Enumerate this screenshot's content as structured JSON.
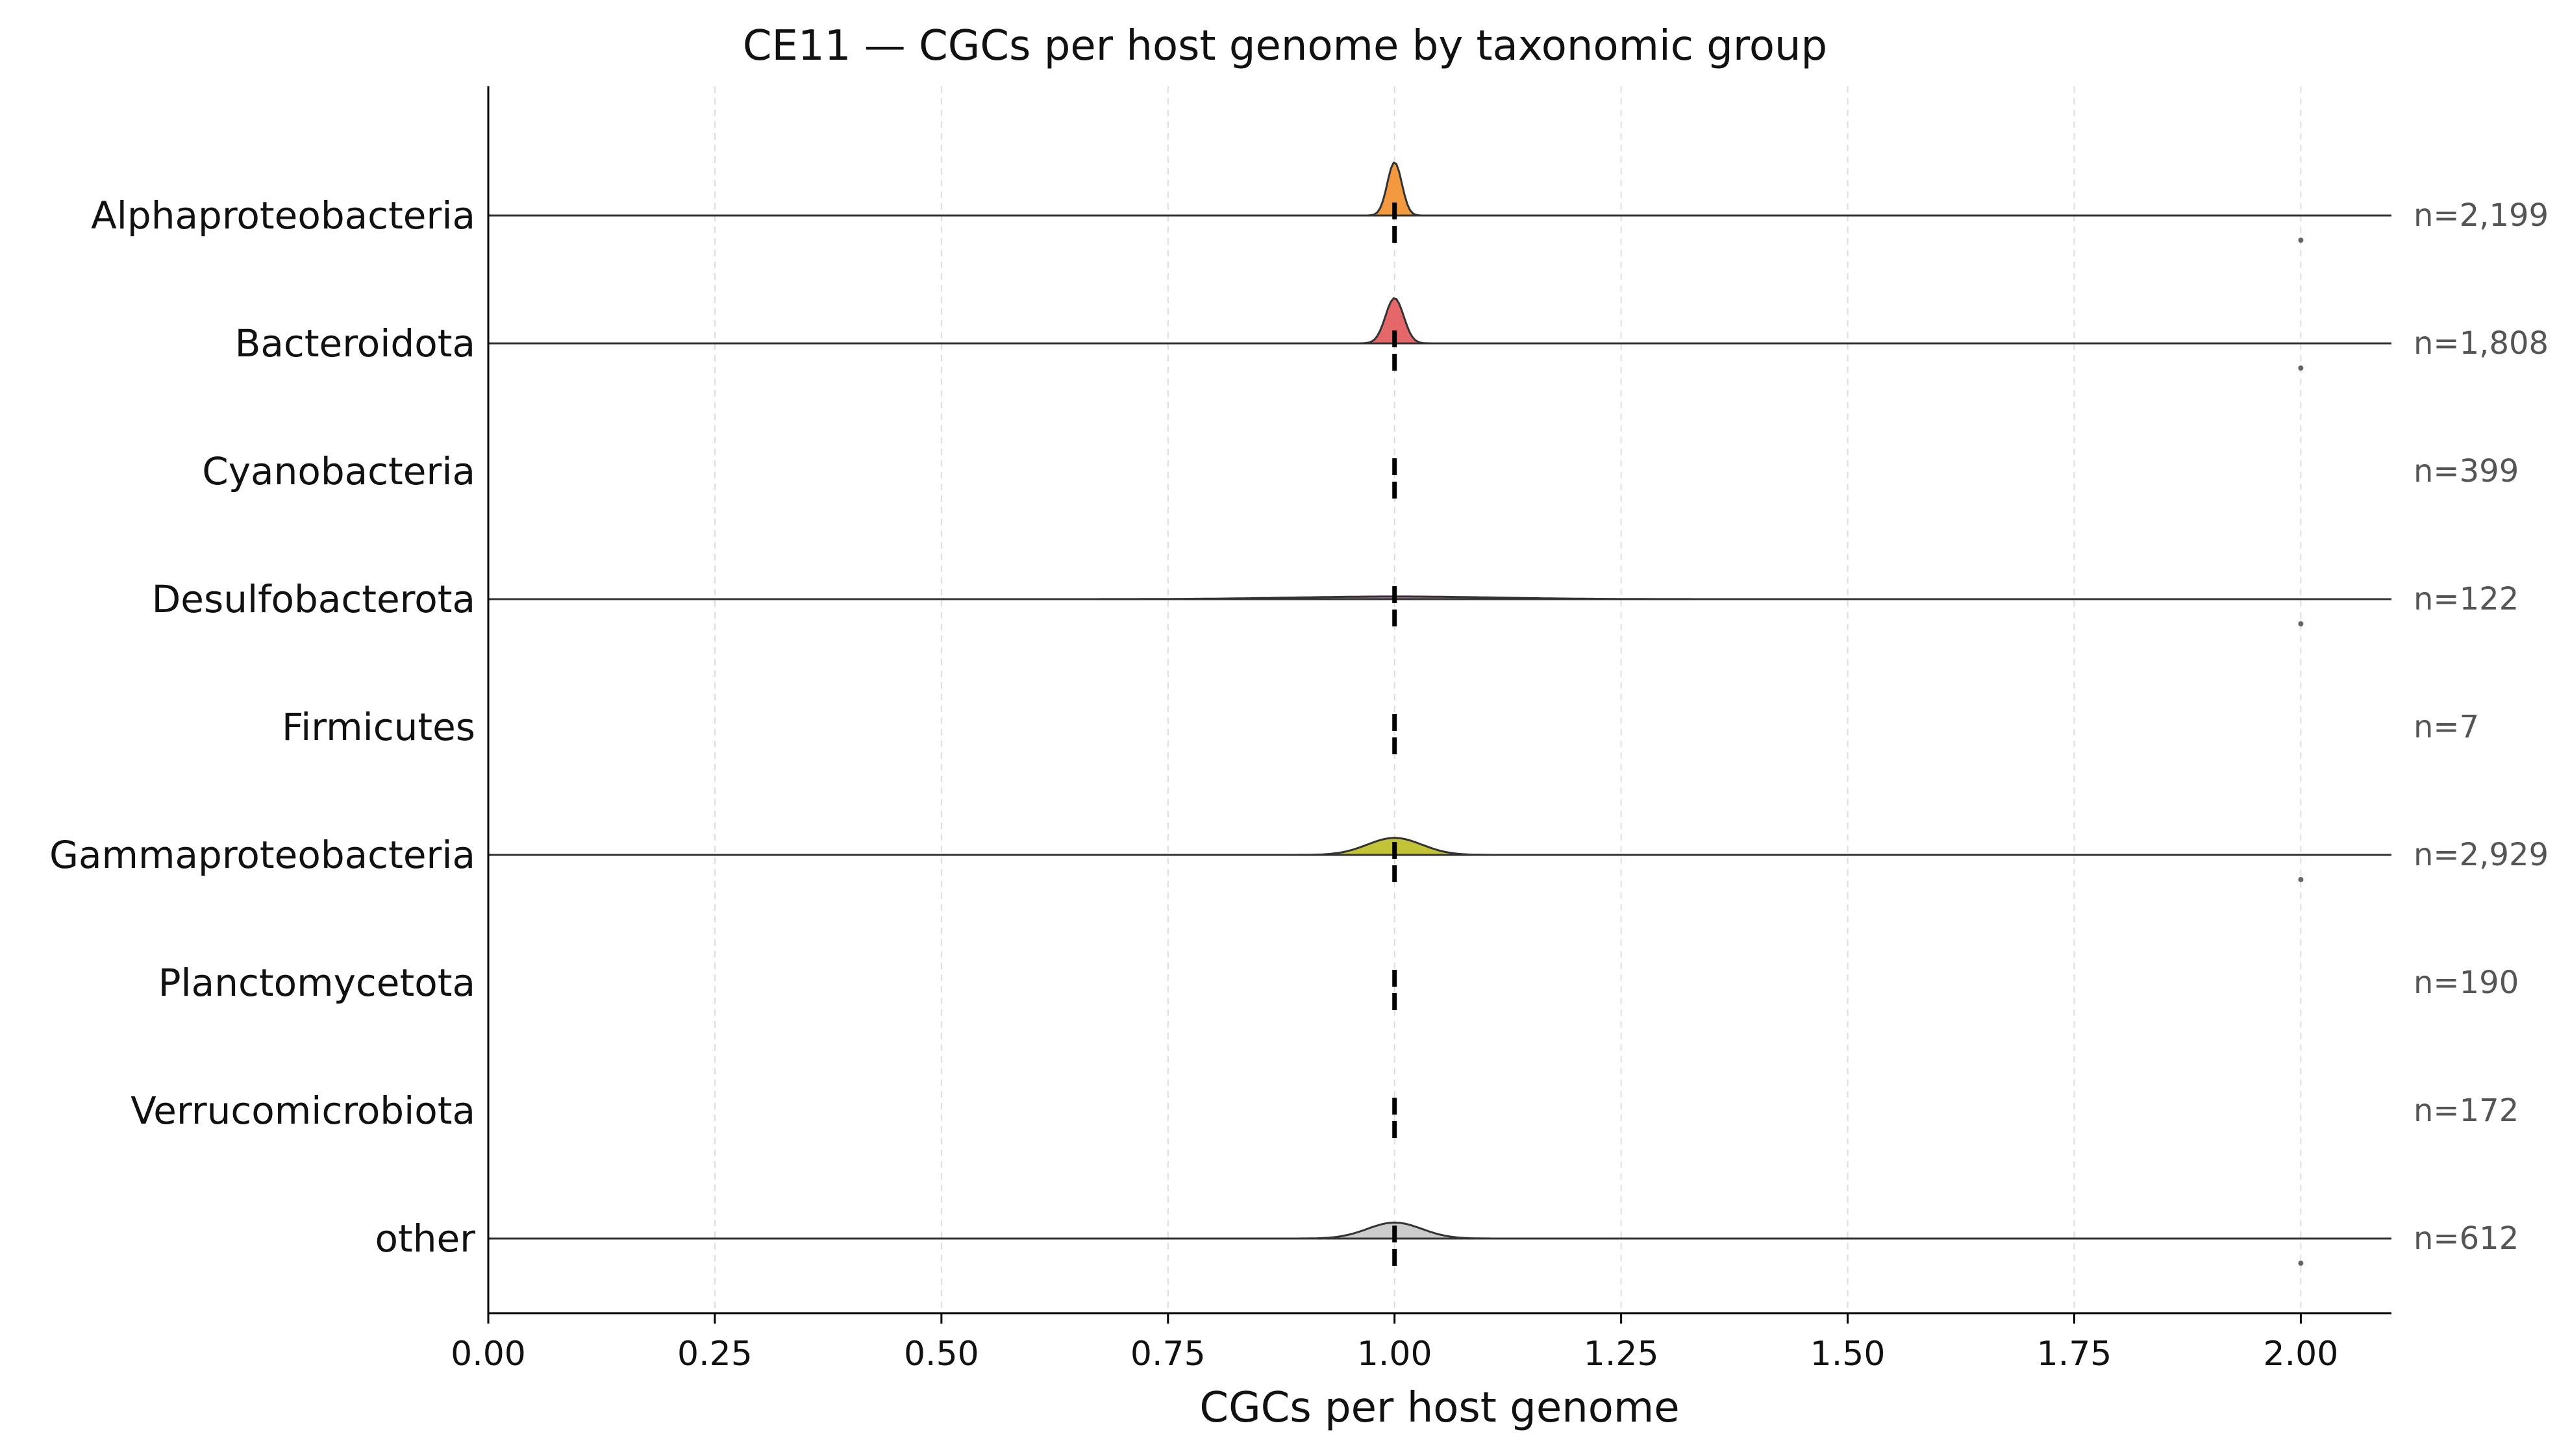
{
  "chart_data": {
    "type": "ridgeline",
    "title": "CE11 — CGCs per host genome by taxonomic group",
    "xlabel": "CGCs per host genome",
    "ylabel": "",
    "xlim": [
      0.0,
      2.1
    ],
    "x_ticks": [
      "0.00",
      "0.25",
      "0.50",
      "0.75",
      "1.00",
      "1.25",
      "1.50",
      "1.75",
      "2.00"
    ],
    "x_tick_values": [
      0.0,
      0.25,
      0.5,
      0.75,
      1.0,
      1.25,
      1.5,
      1.75,
      2.0
    ],
    "grid": "vertical dashed",
    "median_marker": "dashed vertical line at median",
    "groups": [
      {
        "name": "Alphaproteobacteria",
        "n_label": "n=2,199",
        "median": 1.0,
        "kde_mean": 1.0,
        "kde_sd": 0.008,
        "kde_peak": 1.0,
        "outliers": [
          2.0
        ],
        "color": "#F28E2B",
        "drawn": true
      },
      {
        "name": "Bacteroidota",
        "n_label": "n=1,808",
        "median": 1.0,
        "kde_mean": 1.0,
        "kde_sd": 0.01,
        "kde_peak": 0.85,
        "outliers": [
          2.0
        ],
        "color": "#E15759",
        "drawn": true
      },
      {
        "name": "Cyanobacteria",
        "n_label": "n=399",
        "median": 1.0,
        "outliers": [],
        "color": "#8CD17D",
        "drawn": false
      },
      {
        "name": "Desulfobacterota",
        "n_label": "n=122",
        "median": 1.0,
        "kde_mean": 1.0,
        "kde_sd": 0.11,
        "kde_peak": 0.05,
        "outliers": [
          2.0
        ],
        "color": "#B07AA1",
        "drawn": true
      },
      {
        "name": "Firmicutes",
        "n_label": "n=7",
        "median": 1.0,
        "outliers": [],
        "color": "#9C755F",
        "drawn": false
      },
      {
        "name": "Gammaproteobacteria",
        "n_label": "n=2,929",
        "median": 1.0,
        "kde_mean": 1.0,
        "kde_sd": 0.03,
        "kde_peak": 0.32,
        "outliers": [
          2.0
        ],
        "color": "#BCBD22",
        "drawn": true
      },
      {
        "name": "Planctomycetota",
        "n_label": "n=190",
        "median": 1.0,
        "outliers": [],
        "color": "#76B7B2",
        "drawn": false
      },
      {
        "name": "Verrucomicrobiota",
        "n_label": "n=172",
        "median": 1.0,
        "outliers": [],
        "color": "#FF9DA7",
        "drawn": false
      },
      {
        "name": "other",
        "n_label": "n=612",
        "median": 1.0,
        "kde_mean": 1.0,
        "kde_sd": 0.03,
        "kde_peak": 0.3,
        "outliers": [
          2.0
        ],
        "color": "#C7C7C7",
        "drawn": true
      }
    ]
  }
}
